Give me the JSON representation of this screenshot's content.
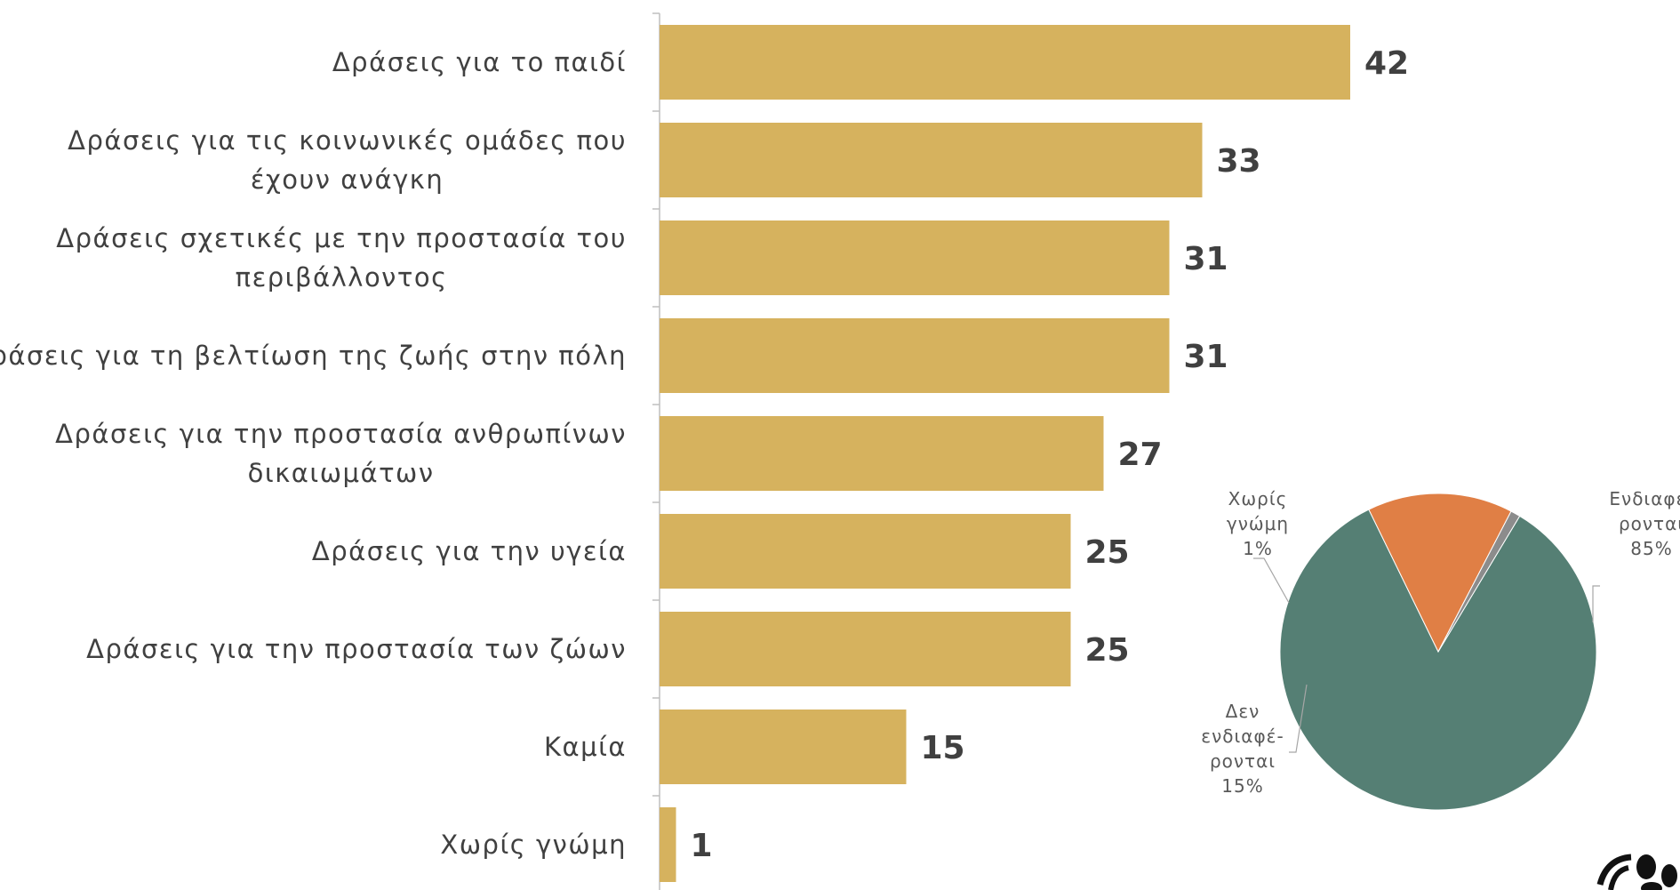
{
  "chart_data": [
    {
      "type": "bar",
      "orientation": "horizontal",
      "categories": [
        "Δράσεις για το παιδί",
        "Δράσεις για τις κοινωνικές ομάδες που έχουν ανάγκη",
        "Δράσεις σχετικές με την προστασία του περιβάλλοντος",
        "Δράσεις για τη βελτίωση της ζωής στην πόλη",
        "Δράσεις για την προστασία ανθρωπίνων δικαιωμάτων",
        "Δράσεις για την υγεία",
        "Δράσεις για την προστασία των ζώων",
        "Καμία",
        "Χωρίς γνώμη"
      ],
      "category_lines": [
        [
          "Δράσεις για το παιδί"
        ],
        [
          "Δράσεις για τις κοινωνικές ομάδες που",
          "έχουν ανάγκη"
        ],
        [
          "Δράσεις σχετικές με την προστασία του",
          "περιβάλλοντος"
        ],
        [
          "Δράσεις για τη βελτίωση της ζωής στην πόλη"
        ],
        [
          "Δράσεις για την προστασία ανθρωπίνων",
          "δικαιωμάτων"
        ],
        [
          "Δράσεις για την υγεία"
        ],
        [
          "Δράσεις για την προστασία των ζώων"
        ],
        [
          "Καμία"
        ],
        [
          "Χωρίς γνώμη"
        ]
      ],
      "values": [
        42,
        33,
        31,
        31,
        27,
        25,
        25,
        15,
        1
      ],
      "value_labels": [
        "42",
        "33",
        "31",
        "31",
        "27",
        "25",
        "25",
        "15",
        "1"
      ],
      "xlim": [
        0,
        50
      ],
      "bar_color": "#D6B25E",
      "text_color": "#404040",
      "grid": false
    },
    {
      "type": "pie",
      "slices": [
        {
          "lines": [
            "Ενδιαφέ-",
            "ρονται",
            "85%"
          ],
          "value": 85,
          "color": "#557F74"
        },
        {
          "lines": [
            "Δεν",
            "ενδιαφέ-",
            "ρονται",
            "15%"
          ],
          "value": 15,
          "color": "#E07F45"
        },
        {
          "lines": [
            "Χωρίς",
            "γνώμη",
            "1%"
          ],
          "value": 1,
          "color": "#8C8C8C"
        }
      ],
      "text_color": "#595959"
    }
  ]
}
